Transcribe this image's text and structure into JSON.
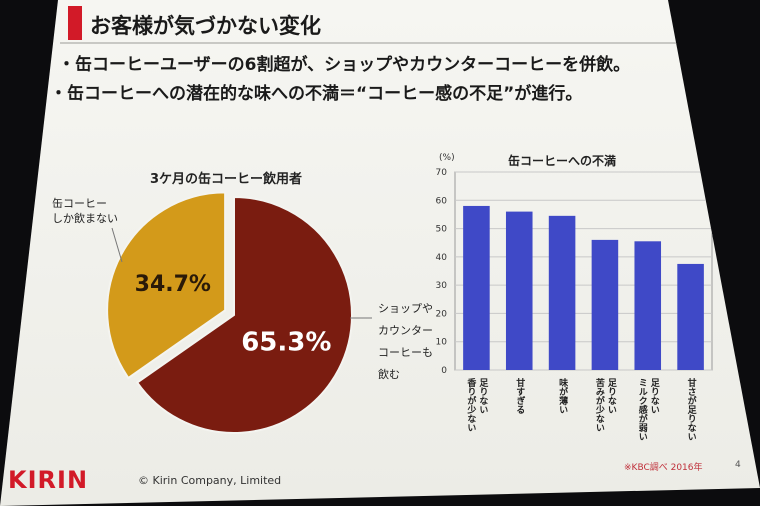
{
  "slide": {
    "title": "お客様が気づかない変化",
    "bullets": [
      "・缶コーヒーユーザーの6割超が、ショップやカウンターコーヒーを併飲。",
      "・缶コーヒーへの潜在的な味への不満＝“コーヒー感の不足”が進行。"
    ],
    "brand_color": "#d21a28"
  },
  "pie_annotations": {
    "only": [
      "缶コーヒー",
      "しか飲まない"
    ],
    "also": [
      "ショップや",
      "カウンター",
      "コーヒーも",
      "飲む"
    ]
  },
  "chart_data": [
    {
      "type": "pie",
      "title": "3ケ月の缶コーヒー飲用者",
      "slices": [
        {
          "label": "ショップやカウンターコーヒーも飲む",
          "value": 65.3,
          "display": "65.3%",
          "color": "#7a1c10"
        },
        {
          "label": "缶コーヒーしか飲まない",
          "value": 34.7,
          "display": "34.7%",
          "color": "#d39a1a"
        }
      ]
    },
    {
      "type": "bar",
      "title": "缶コーヒーへの不満",
      "unit": "(%)",
      "categories": [
        "香りが少ない 足りない",
        "甘すぎる",
        "味が薄い",
        "苦みが少ない 足りない",
        "ミルク感が弱い 足りない",
        "甘さが足りない"
      ],
      "values": [
        58,
        56,
        54.5,
        46,
        45.5,
        37.5
      ],
      "ylim": [
        0,
        70
      ],
      "yticks": [
        0,
        10,
        20,
        30,
        40,
        50,
        60,
        70
      ],
      "bar_color": "#3f49c7",
      "grid": true
    }
  ],
  "footer": {
    "brand": "KIRIN",
    "copyright": "© Kirin Company, Limited",
    "source": "※KBC調べ 2016年",
    "page": "4"
  }
}
